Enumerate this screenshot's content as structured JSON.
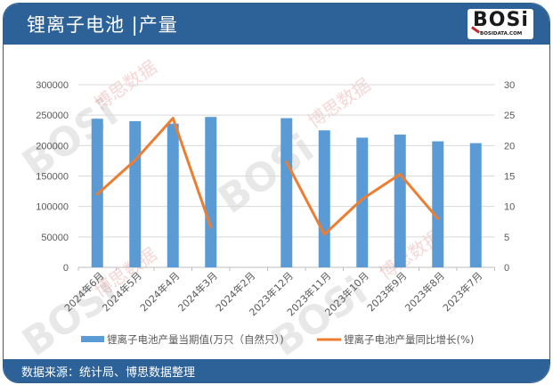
{
  "header": {
    "title": "锂离子电池 |产量",
    "logo_text": "BOSi",
    "logo_sub": "BOSIDATA.COM"
  },
  "footer": {
    "source": "数据来源：统计局、博思数据整理"
  },
  "watermark": {
    "brand": "BOSi",
    "cn": "博思数据",
    "en": "BosiData Research"
  },
  "colors": {
    "header_bg": "#2d6299",
    "bar": "#5b9bd5",
    "line": "#ed7d31",
    "grid": "#d9d9d9",
    "axis_text": "#595959"
  },
  "chart_data": {
    "type": "bar",
    "title": "锂离子电池 |产量",
    "categories": [
      "2024年6月",
      "2024年5月",
      "2024年4月",
      "2024年3月",
      "2024年2月",
      "2023年12月",
      "2023年11月",
      "2023年10月",
      "2023年9月",
      "2023年8月",
      "2023年7月"
    ],
    "series": [
      {
        "name": "锂离子电池产量当期值(万只（自然只）)",
        "type": "bar",
        "axis": "left",
        "values": [
          244000,
          240000,
          236000,
          247000,
          null,
          245000,
          225000,
          213000,
          218000,
          207000,
          204000
        ]
      },
      {
        "name": "锂离子电池产量同比增长(%)",
        "type": "line",
        "axis": "right",
        "values": [
          12.0,
          17.6,
          24.5,
          6.6,
          null,
          17.3,
          5.4,
          11.2,
          15.3,
          8.0,
          null
        ]
      }
    ],
    "y_left": {
      "min": 0,
      "max": 300000,
      "ticks": [
        "0",
        "50000",
        "100000",
        "150000",
        "200000",
        "250000",
        "300000"
      ]
    },
    "y_right": {
      "min": 0,
      "max": 30,
      "ticks": [
        "0",
        "5",
        "10",
        "15",
        "20",
        "25",
        "30"
      ]
    },
    "xlabel": "",
    "ylabel": "",
    "grid": true,
    "legend_position": "bottom"
  }
}
